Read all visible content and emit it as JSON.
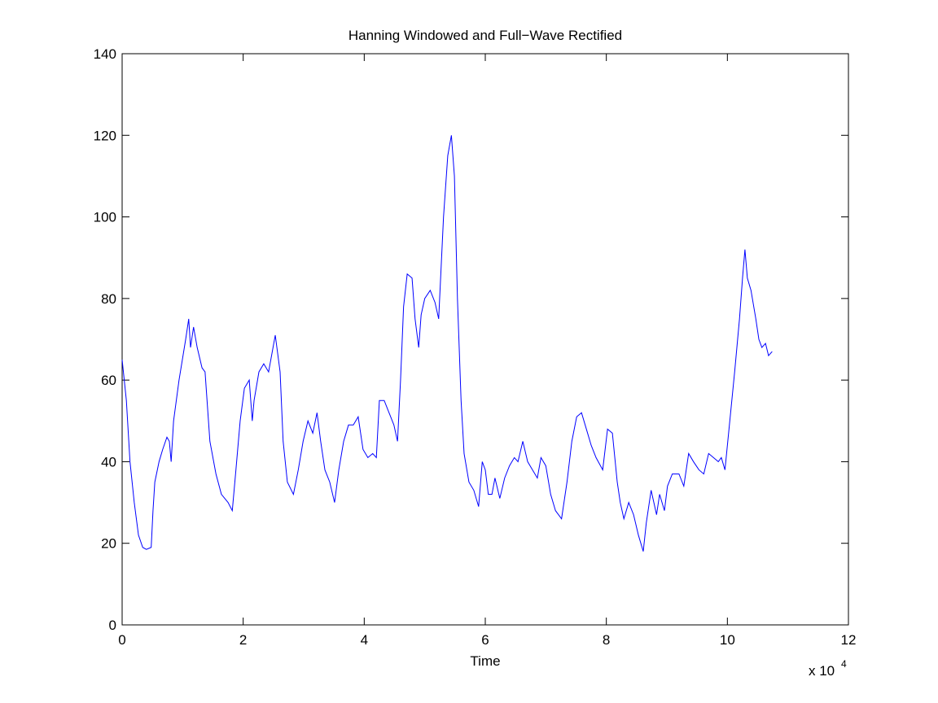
{
  "chart_data": {
    "type": "line",
    "title": "Hanning Windowed and Full−Wave Rectified",
    "x_label": "Time",
    "x_multiplier": {
      "base": "x 10",
      "exponent": "4"
    },
    "xlim": [
      0,
      12
    ],
    "xticks": [
      0,
      2,
      4,
      6,
      8,
      10,
      12
    ],
    "ylim": [
      0,
      140
    ],
    "yticks": [
      0,
      20,
      40,
      60,
      80,
      100,
      120,
      140
    ],
    "grid": false,
    "series": [
      {
        "color": "#0000ff",
        "x": [
          0,
          0.07,
          0.13,
          0.2,
          0.27,
          0.34,
          0.4,
          0.48,
          0.51,
          0.54,
          0.61,
          0.67,
          0.74,
          0.78,
          0.81,
          0.85,
          0.94,
          1.05,
          1.1,
          1.13,
          1.18,
          1.24,
          1.32,
          1.37,
          1.45,
          1.55,
          1.64,
          1.75,
          1.82,
          1.88,
          1.95,
          2.02,
          2.1,
          2.15,
          2.18,
          2.26,
          2.34,
          2.42,
          2.53,
          2.61,
          2.66,
          2.73,
          2.83,
          2.91,
          2.99,
          3.07,
          3.15,
          3.22,
          3.28,
          3.35,
          3.43,
          3.51,
          3.58,
          3.66,
          3.74,
          3.82,
          3.9,
          3.98,
          4.06,
          4.14,
          4.2,
          4.25,
          4.33,
          4.41,
          4.49,
          4.55,
          4.6,
          4.65,
          4.71,
          4.79,
          4.84,
          4.9,
          4.94,
          5.0,
          5.09,
          5.17,
          5.23,
          5.31,
          5.38,
          5.44,
          5.49,
          5.54,
          5.6,
          5.65,
          5.73,
          5.81,
          5.89,
          5.95,
          6.0,
          6.05,
          6.11,
          6.16,
          6.24,
          6.32,
          6.4,
          6.48,
          6.54,
          6.62,
          6.7,
          6.78,
          6.86,
          6.92,
          7.0,
          7.08,
          7.16,
          7.26,
          7.35,
          7.43,
          7.51,
          7.59,
          7.67,
          7.75,
          7.83,
          7.94,
          8.02,
          8.1,
          8.18,
          8.23,
          8.29,
          8.37,
          8.45,
          8.53,
          8.61,
          8.66,
          8.74,
          8.83,
          8.88,
          8.96,
          9.01,
          9.09,
          9.2,
          9.28,
          9.36,
          9.44,
          9.53,
          9.61,
          9.69,
          9.77,
          9.85,
          9.9,
          9.96,
          10.04,
          10.12,
          10.2,
          10.25,
          10.29,
          10.33,
          10.39,
          10.47,
          10.52,
          10.57,
          10.63,
          10.68,
          10.74
        ],
        "values": [
          65,
          55,
          40,
          30,
          22,
          19,
          18.5,
          19,
          28,
          35,
          40,
          43,
          46,
          45,
          40,
          50,
          60,
          70,
          75,
          68,
          73,
          68,
          63,
          62,
          45,
          37,
          32,
          30,
          28,
          38,
          50,
          58,
          60,
          50,
          55,
          62,
          64,
          62,
          71,
          62,
          45,
          35,
          32,
          38,
          45,
          50,
          47,
          52,
          45,
          38,
          35,
          30,
          38,
          45,
          49,
          49,
          51,
          43,
          41,
          42,
          41,
          55,
          55,
          52,
          49,
          45,
          60,
          78,
          86,
          85,
          75,
          68,
          76,
          80,
          82,
          79,
          75,
          100,
          115,
          120,
          110,
          80,
          55,
          42,
          35,
          33,
          29,
          40,
          38,
          32,
          32,
          36,
          31,
          36,
          39,
          41,
          40,
          45,
          40,
          38,
          36,
          41,
          39,
          32,
          28,
          26,
          35,
          45,
          51,
          52,
          48,
          44,
          41,
          38,
          48,
          47,
          35,
          30,
          26,
          30,
          27,
          22,
          18,
          25,
          33,
          27,
          32,
          28,
          34,
          37,
          37,
          34,
          42,
          40,
          38,
          37,
          42,
          41,
          40,
          41,
          38,
          50,
          62,
          75,
          85,
          92,
          85,
          82,
          75,
          70,
          68,
          69,
          66,
          67
        ]
      }
    ]
  }
}
